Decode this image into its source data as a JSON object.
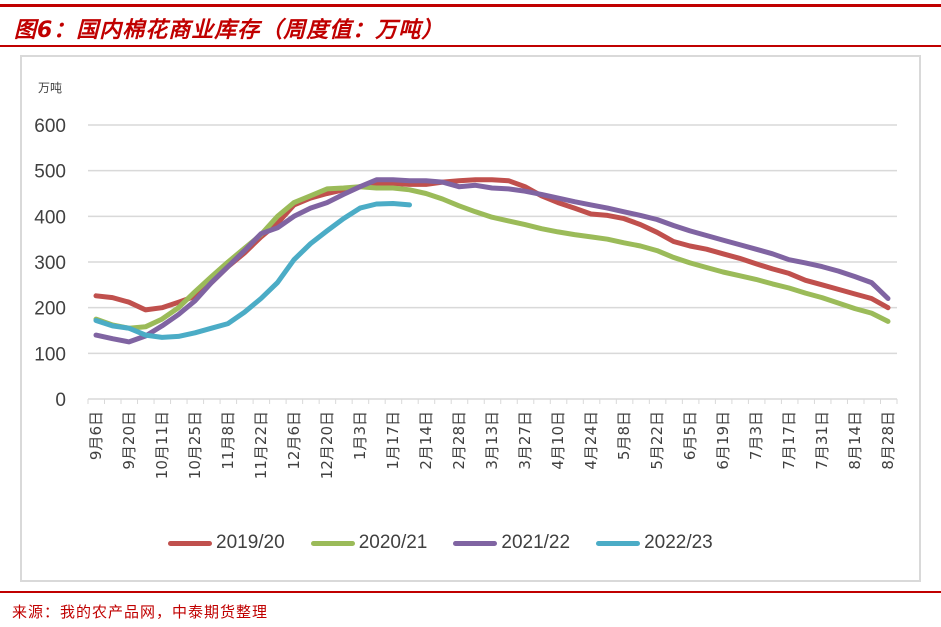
{
  "figure": {
    "title": "图6：国内棉花商业库存（周度值：万吨）",
    "unit_label": "万吨",
    "source": "来源：我的农产品网，中泰期货整理"
  },
  "colors": {
    "brand_red": "#c00000",
    "series_2019_20": "#c0504d",
    "series_2020_21": "#9bbb59",
    "series_2021_22": "#8064a2",
    "series_2022_23": "#4bacc6"
  },
  "chart_data": {
    "type": "line",
    "title": "国内棉花商业库存（周度值：万吨）",
    "xlabel": "",
    "ylabel": "万吨",
    "ylim": [
      0,
      600
    ],
    "yticks": [
      0,
      100,
      200,
      300,
      400,
      500,
      600
    ],
    "grid": true,
    "legend_position": "bottom",
    "x_tick_labels": [
      "9月6日",
      "9月20日",
      "10月11日",
      "10月25日",
      "11月8日",
      "11月22日",
      "12月6日",
      "12月20日",
      "1月3日",
      "1月17日",
      "2月14日",
      "2月28日",
      "3月13日",
      "3月27日",
      "4月10日",
      "4月24日",
      "5月8日",
      "5月22日",
      "6月5日",
      "6月19日",
      "7月3日",
      "7月17日",
      "7月31日",
      "8月14日",
      "8月28日"
    ],
    "n_points": 49,
    "series": [
      {
        "name": "2019/20",
        "color": "#c0504d",
        "values": [
          226,
          222,
          212,
          195,
          200,
          212,
          225,
          255,
          290,
          320,
          355,
          385,
          425,
          440,
          450,
          458,
          465,
          470,
          472,
          470,
          470,
          475,
          478,
          480,
          480,
          478,
          465,
          445,
          430,
          418,
          405,
          402,
          395,
          382,
          365,
          345,
          335,
          328,
          318,
          308,
          296,
          285,
          275,
          260,
          250,
          240,
          230,
          220,
          200
        ]
      },
      {
        "name": "2020/21",
        "color": "#9bbb59",
        "values": [
          175,
          162,
          155,
          158,
          175,
          200,
          235,
          268,
          300,
          330,
          360,
          400,
          430,
          445,
          460,
          462,
          465,
          462,
          462,
          458,
          450,
          438,
          423,
          410,
          398,
          390,
          382,
          373,
          366,
          360,
          355,
          350,
          342,
          335,
          325,
          310,
          298,
          288,
          278,
          270,
          262,
          252,
          243,
          232,
          222,
          210,
          198,
          188,
          170
        ]
      },
      {
        "name": "2021/22",
        "color": "#8064a2",
        "values": [
          140,
          132,
          125,
          138,
          160,
          185,
          215,
          255,
          290,
          325,
          362,
          375,
          400,
          418,
          430,
          448,
          465,
          480,
          480,
          478,
          478,
          475,
          465,
          468,
          462,
          460,
          455,
          448,
          440,
          432,
          425,
          418,
          410,
          402,
          393,
          380,
          368,
          358,
          348,
          338,
          328,
          318,
          305,
          298,
          290,
          280,
          268,
          255,
          220
        ]
      },
      {
        "name": "2022/23",
        "color": "#4bacc6",
        "values": [
          172,
          160,
          155,
          140,
          135,
          137,
          145,
          155,
          165,
          190,
          220,
          255,
          305,
          340,
          368,
          395,
          418,
          427,
          428,
          425
        ]
      }
    ]
  },
  "legend": [
    {
      "label": "2019/20",
      "color": "#c0504d"
    },
    {
      "label": "2020/21",
      "color": "#9bbb59"
    },
    {
      "label": "2021/22",
      "color": "#8064a2"
    },
    {
      "label": "2022/23",
      "color": "#4bacc6"
    }
  ]
}
